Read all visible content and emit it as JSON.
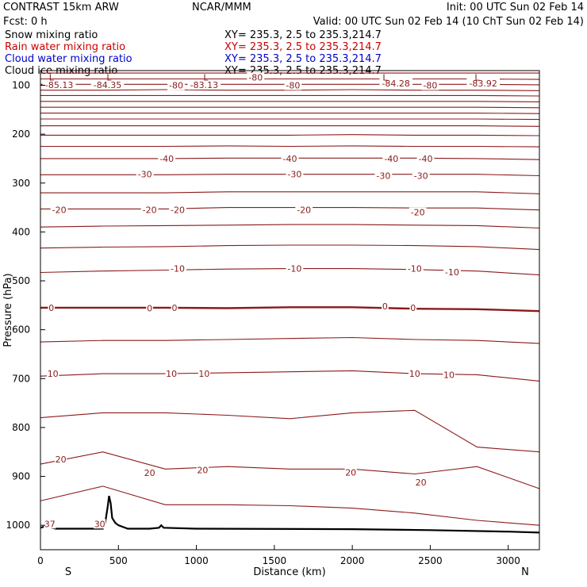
{
  "header": {
    "title": "CONTRAST 15km ARW",
    "center": "NCAR/MMM",
    "init": "Init: 00 UTC Sun 02 Feb 14",
    "fcst": "Fcst:    0 h",
    "valid": "Valid: 00 UTC Sun 02 Feb 14 (10 ChT Sun 02 Feb 14)",
    "fields": [
      {
        "label": "Snow mixing ratio",
        "xy": "XY= 235.3,   2.5 to 235.3,214.7",
        "color": "#000000"
      },
      {
        "label": "Rain water mixing ratio",
        "xy": "XY= 235.3,   2.5 to 235.3,214.7",
        "color": "#cc0000"
      },
      {
        "label": "Cloud water mixing ratio",
        "xy": "XY= 235.3,   2.5 to 235.3,214.7",
        "color": "#0000cc"
      },
      {
        "label": "Cloud ice mixing ratio",
        "xy": "XY= 235.3,   2.5 to 235.3,214.7",
        "color": "#000000"
      }
    ]
  },
  "chart_data": {
    "type": "line",
    "title": "",
    "xlabel": "Distance (km)",
    "ylabel": "Pressure (hPa)",
    "xlim": [
      0,
      3200
    ],
    "ylim": [
      1050,
      70
    ],
    "x_ticks": [
      0,
      500,
      1000,
      1500,
      2000,
      2500,
      3000
    ],
    "y_ticks": [
      100,
      200,
      300,
      400,
      500,
      600,
      700,
      800,
      900,
      1000
    ],
    "end_labels": {
      "left": "S",
      "right": "N"
    },
    "contour_color": "#8b1a1a",
    "x_samples": [
      0,
      400,
      800,
      1200,
      1600,
      2000,
      2400,
      2800,
      3200
    ],
    "contours": [
      [
        75,
        75,
        75,
        75,
        75,
        75,
        75,
        75,
        75
      ],
      [
        87,
        87,
        87,
        87,
        87,
        87,
        87,
        87,
        88
      ],
      [
        98,
        98,
        98,
        98,
        98,
        98,
        98,
        98,
        99
      ],
      [
        110,
        110,
        109,
        110,
        110,
        109,
        110,
        110,
        111
      ],
      [
        121,
        121,
        121,
        121,
        121,
        121,
        121,
        121,
        122
      ],
      [
        133,
        133,
        133,
        133,
        133,
        133,
        133,
        133,
        134
      ],
      [
        145,
        145,
        145,
        145,
        145,
        145,
        145,
        145,
        146
      ],
      [
        157,
        157,
        157,
        157,
        157,
        157,
        157,
        157,
        158
      ],
      [
        169,
        169,
        169,
        169,
        169,
        169,
        169,
        169,
        170
      ],
      [
        183,
        183,
        183,
        183,
        183,
        183,
        183,
        183,
        184
      ],
      [
        202,
        202,
        202,
        202,
        202,
        201,
        202,
        202,
        203
      ],
      [
        225,
        225,
        225,
        224,
        225,
        224,
        225,
        225,
        226
      ],
      [
        250,
        250,
        250,
        249,
        249,
        249,
        249,
        250,
        252
      ],
      [
        283,
        283,
        283,
        282,
        282,
        282,
        282,
        282,
        285
      ],
      [
        320,
        320,
        320,
        318,
        318,
        318,
        318,
        318,
        322
      ],
      [
        353,
        353,
        353,
        350,
        350,
        350,
        351,
        351,
        355
      ],
      [
        390,
        388,
        387,
        386,
        385,
        385,
        386,
        387,
        392
      ],
      [
        433,
        431,
        430,
        428,
        427,
        427,
        428,
        430,
        436
      ],
      [
        483,
        480,
        478,
        476,
        475,
        475,
        477,
        480,
        488
      ],
      [
        555,
        555,
        555,
        556,
        554,
        554,
        557,
        558,
        562
      ],
      [
        625,
        622,
        622,
        620,
        618,
        616,
        620,
        622,
        628
      ],
      [
        695,
        690,
        690,
        688,
        686,
        684,
        690,
        692,
        705
      ],
      [
        780,
        770,
        770,
        775,
        782,
        770,
        765,
        840,
        850
      ],
      [
        875,
        850,
        885,
        880,
        885,
        885,
        895,
        880,
        925
      ],
      [
        950,
        920,
        958,
        958,
        960,
        965,
        975,
        990,
        1000
      ]
    ],
    "contour_labels": [
      {
        "text": "-85.13",
        "x": 120,
        "p": 99
      },
      {
        "text": "-84.35",
        "x": 430,
        "p": 99
      },
      {
        "text": "-83.13",
        "x": 1050,
        "p": 99
      },
      {
        "text": "-84.28",
        "x": 2280,
        "p": 96
      },
      {
        "text": "-83.92",
        "x": 2840,
        "p": 96
      },
      {
        "text": "-80",
        "x": 870,
        "p": 100
      },
      {
        "text": "-80",
        "x": 1380,
        "p": 84
      },
      {
        "text": "-80",
        "x": 1620,
        "p": 100
      },
      {
        "text": "-80",
        "x": 2500,
        "p": 100
      },
      {
        "text": "-40",
        "x": 810,
        "p": 250
      },
      {
        "text": "-40",
        "x": 1600,
        "p": 250
      },
      {
        "text": "-40",
        "x": 2250,
        "p": 250
      },
      {
        "text": "-40",
        "x": 2470,
        "p": 250
      },
      {
        "text": "-30",
        "x": 670,
        "p": 282
      },
      {
        "text": "-30",
        "x": 1630,
        "p": 282
      },
      {
        "text": "-30",
        "x": 2200,
        "p": 285
      },
      {
        "text": "-30",
        "x": 2440,
        "p": 285
      },
      {
        "text": "-20",
        "x": 120,
        "p": 355
      },
      {
        "text": "-20",
        "x": 700,
        "p": 355
      },
      {
        "text": "-20",
        "x": 880,
        "p": 355
      },
      {
        "text": "-20",
        "x": 1690,
        "p": 355
      },
      {
        "text": "-20",
        "x": 2420,
        "p": 360
      },
      {
        "text": "-10",
        "x": 880,
        "p": 475
      },
      {
        "text": "-10",
        "x": 1630,
        "p": 475
      },
      {
        "text": "-10",
        "x": 2400,
        "p": 475
      },
      {
        "text": "-10",
        "x": 2640,
        "p": 482
      },
      {
        "text": "0",
        "x": 70,
        "p": 555
      },
      {
        "text": "0",
        "x": 700,
        "p": 556
      },
      {
        "text": "0",
        "x": 860,
        "p": 555
      },
      {
        "text": "0",
        "x": 2210,
        "p": 552
      },
      {
        "text": "0",
        "x": 2390,
        "p": 555
      },
      {
        "text": "10",
        "x": 80,
        "p": 690
      },
      {
        "text": "10",
        "x": 840,
        "p": 690
      },
      {
        "text": "10",
        "x": 1050,
        "p": 690
      },
      {
        "text": "10",
        "x": 2400,
        "p": 690
      },
      {
        "text": "10",
        "x": 2620,
        "p": 692
      },
      {
        "text": "20",
        "x": 130,
        "p": 865
      },
      {
        "text": "20",
        "x": 700,
        "p": 893
      },
      {
        "text": "20",
        "x": 1040,
        "p": 887
      },
      {
        "text": "20",
        "x": 1990,
        "p": 892
      },
      {
        "text": "20",
        "x": 2440,
        "p": 912
      },
      {
        "text": "30",
        "x": 380,
        "p": 997
      },
      {
        "text": "37",
        "x": 60,
        "p": 997
      }
    ],
    "lows": [
      {
        "text": "L",
        "x": 70
      },
      {
        "text": "L",
        "x": 440
      },
      {
        "text": "L",
        "x": 1060
      },
      {
        "text": "L",
        "x": 2210
      },
      {
        "text": "L",
        "x": 2800
      }
    ],
    "terrain_x": [
      0,
      30,
      50,
      70,
      100,
      300,
      400,
      415,
      430,
      440,
      450,
      460,
      480,
      500,
      560,
      700,
      760,
      775,
      790,
      1000,
      2000,
      2500,
      3000,
      3200
    ],
    "terrain_p": [
      1005,
      1002,
      1000,
      1005,
      1007,
      1007,
      1007,
      995,
      965,
      940,
      955,
      985,
      995,
      1000,
      1007,
      1007,
      1005,
      1000,
      1005,
      1007,
      1008,
      1010,
      1013,
      1015
    ]
  }
}
